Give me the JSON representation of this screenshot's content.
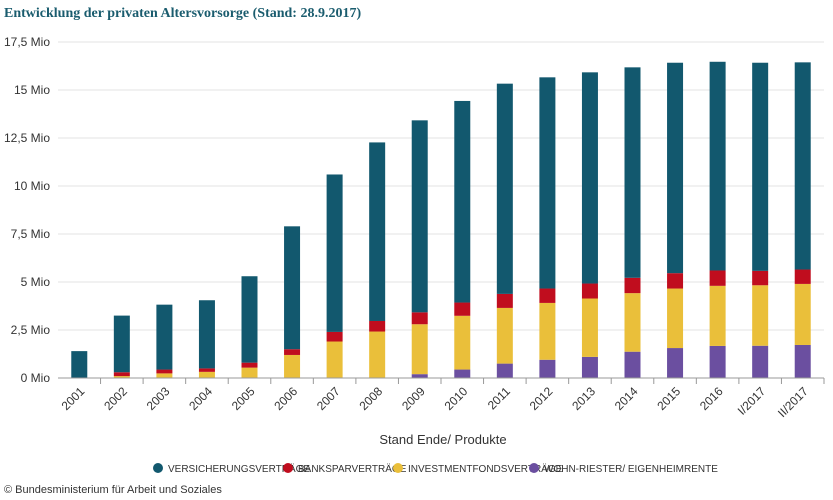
{
  "title": "Entwicklung der privaten Altersvorsorge (Stand: 28.9.2017)",
  "copyright": "© Bundesministerium für Arbeit und Soziales",
  "chart_data": {
    "type": "bar",
    "stacked": true,
    "xlabel": "Stand Ende/ Produkte",
    "ylabel": "",
    "ylim": [
      0,
      17.5
    ],
    "yticks": [
      {
        "value": 0,
        "label": "0 Mio"
      },
      {
        "value": 2.5,
        "label": "2,5 Mio"
      },
      {
        "value": 5,
        "label": "5 Mio"
      },
      {
        "value": 7.5,
        "label": "7,5 Mio"
      },
      {
        "value": 10,
        "label": "10 Mio"
      },
      {
        "value": 12.5,
        "label": "12,5 Mio"
      },
      {
        "value": 15,
        "label": "15 Mio"
      },
      {
        "value": 17.5,
        "label": "17,5 Mio"
      }
    ],
    "grid": true,
    "legend_position": "bottom",
    "categories": [
      "2001",
      "2002",
      "2003",
      "2004",
      "2005",
      "2006",
      "2007",
      "2008",
      "2009",
      "2010",
      "2011",
      "2012",
      "2013",
      "2014",
      "2015",
      "2016",
      "I/2017",
      "II/2017"
    ],
    "series": [
      {
        "name": "WOHN-RIESTER/ EIGENHEIMRENTE",
        "color": "#6b4fa0",
        "values": [
          0,
          0,
          0,
          0,
          0,
          0,
          0,
          0.02,
          0.2,
          0.44,
          0.75,
          0.95,
          1.1,
          1.37,
          1.56,
          1.67,
          1.68,
          1.72
        ]
      },
      {
        "name": "INVESTMENTFONDSVERTRÄGE",
        "color": "#eabf3a",
        "values": [
          0,
          0.1,
          0.24,
          0.32,
          0.54,
          1.2,
          1.9,
          2.4,
          2.6,
          2.8,
          2.9,
          2.96,
          3.04,
          3.05,
          3.1,
          3.13,
          3.15,
          3.18
        ]
      },
      {
        "name": "BANKSPARVERTRÄGE",
        "color": "#c00d1e",
        "values": [
          0,
          0.2,
          0.2,
          0.18,
          0.26,
          0.3,
          0.5,
          0.55,
          0.62,
          0.69,
          0.73,
          0.75,
          0.78,
          0.8,
          0.8,
          0.8,
          0.75,
          0.75
        ]
      },
      {
        "name": "VERSICHERUNGSVERTRÄGE",
        "color": "#12586e",
        "values": [
          1.4,
          2.95,
          3.38,
          3.55,
          4.5,
          6.4,
          8.2,
          9.3,
          10.0,
          10.5,
          10.95,
          11.0,
          11.0,
          10.96,
          10.96,
          10.87,
          10.84,
          10.79
        ]
      }
    ],
    "legend_order": [
      "VERSICHERUNGSVERTRÄGE",
      "BANKSPARVERTRÄGE",
      "INVESTMENTFONDSVERTRÄGE",
      "WOHN-RIESTER/ EIGENHEIMRENTE"
    ]
  }
}
